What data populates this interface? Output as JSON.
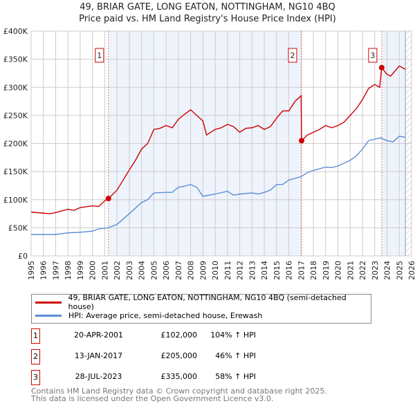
{
  "chart_data": {
    "type": "line",
    "title": "49, BRIAR GATE, LONG EATON, NOTTINGHAM, NG10 4BQ",
    "subtitle": "Price paid vs. HM Land Registry's House Price Index (HPI)",
    "xlim": [
      1995,
      2026
    ],
    "ylim": [
      0,
      400000
    ],
    "x_ticks": [
      "1995",
      "1996",
      "1997",
      "1998",
      "1999",
      "2000",
      "2001",
      "2002",
      "2003",
      "2004",
      "2005",
      "2006",
      "2007",
      "2008",
      "2009",
      "2010",
      "2011",
      "2012",
      "2013",
      "2014",
      "2015",
      "2016",
      "2017",
      "2018",
      "2019",
      "2020",
      "2021",
      "2022",
      "2023",
      "2024",
      "2025",
      "2026"
    ],
    "y_ticks": [
      {
        "v": 0,
        "l": "£0"
      },
      {
        "v": 50000,
        "l": "£50K"
      },
      {
        "v": 100000,
        "l": "£100K"
      },
      {
        "v": 150000,
        "l": "£150K"
      },
      {
        "v": 200000,
        "l": "£200K"
      },
      {
        "v": 250000,
        "l": "£250K"
      },
      {
        "v": 300000,
        "l": "£300K"
      },
      {
        "v": 350000,
        "l": "£350K"
      },
      {
        "v": 400000,
        "l": "£400K"
      }
    ],
    "grid": true,
    "series": [
      {
        "name": "49, BRIAR GATE, LONG EATON, NOTTINGHAM, NG10 4BQ (semi-detached house)",
        "color": "#cc0000",
        "x": [
          1995,
          1996,
          1996.5,
          1997,
          1998,
          1998.5,
          1999,
          2000,
          2000.5,
          2001,
          2001.3,
          2002,
          2002.5,
          2003,
          2003.5,
          2004,
          2004.5,
          2005,
          2005.5,
          2006,
          2006.5,
          2007,
          2007.5,
          2008,
          2008.5,
          2009,
          2009.3,
          2010,
          2010.5,
          2011,
          2011.5,
          2012,
          2012.5,
          2013,
          2013.5,
          2014,
          2014.5,
          2015,
          2015.5,
          2016,
          2016.5,
          2017,
          2017.04,
          2017.5,
          2018,
          2018.5,
          2019,
          2019.5,
          2020,
          2020.5,
          2021,
          2021.5,
          2022,
          2022.5,
          2023,
          2023.4,
          2023.57,
          2024,
          2024.3,
          2025,
          2025.5
        ],
        "y": [
          78000,
          76000,
          75000,
          77000,
          83000,
          81000,
          86000,
          89000,
          88000,
          98000,
          102000,
          117000,
          135000,
          153000,
          170000,
          190000,
          200000,
          225000,
          227000,
          232000,
          228000,
          243000,
          252000,
          260000,
          250000,
          240000,
          215000,
          225000,
          228000,
          234000,
          230000,
          220000,
          227000,
          228000,
          232000,
          225000,
          230000,
          245000,
          258000,
          258000,
          275000,
          285000,
          205000,
          215000,
          220000,
          225000,
          232000,
          228000,
          232000,
          238000,
          250000,
          262000,
          278000,
          298000,
          305000,
          300000,
          335000,
          323000,
          320000,
          338000,
          332000
        ]
      },
      {
        "name": "HPI: Average price, semi-detached house, Erewash",
        "color": "#5b8ed6",
        "x": [
          1995,
          1997,
          1998,
          1999,
          2000,
          2000.5,
          2001.3,
          2002,
          2003,
          2003.5,
          2004,
          2004.5,
          2005,
          2006,
          2006.5,
          2007,
          2007.5,
          2008,
          2008.5,
          2009,
          2009.5,
          2010,
          2011,
          2011.5,
          2012,
          2013,
          2013.5,
          2014,
          2014.5,
          2015,
          2015.5,
          2016,
          2016.5,
          2017,
          2017.5,
          2018,
          2019,
          2019.5,
          2020,
          2021,
          2021.5,
          2022,
          2022.5,
          2023,
          2023.5,
          2024,
          2024.5,
          2025,
          2025.5
        ],
        "y": [
          38000,
          38000,
          41000,
          42000,
          44000,
          48000,
          50000,
          56000,
          75000,
          85000,
          95000,
          100000,
          112000,
          113000,
          113000,
          122000,
          124000,
          127000,
          122000,
          106000,
          108000,
          110000,
          115000,
          108000,
          110000,
          112000,
          110000,
          113000,
          117000,
          127000,
          127000,
          135000,
          138000,
          141000,
          148000,
          152000,
          158000,
          157000,
          160000,
          170000,
          178000,
          190000,
          205000,
          208000,
          210000,
          205000,
          203000,
          213000,
          211000
        ]
      }
    ],
    "sales": [
      {
        "n": "1",
        "date": "20-APR-2001",
        "price": "£102,000",
        "hpi": "104% ↑ HPI",
        "x": 2001.3,
        "y": 102000
      },
      {
        "n": "2",
        "date": "13-JAN-2017",
        "price": "£205,000",
        "hpi": "46% ↑ HPI",
        "x": 2017.04,
        "y": 205000
      },
      {
        "n": "3",
        "date": "28-JUL-2023",
        "price": "£335,000",
        "hpi": "58% ↑ HPI",
        "x": 2023.57,
        "y": 335000
      }
    ],
    "shaded": [
      [
        2001.3,
        2017.04
      ],
      [
        2023.57,
        2025.5
      ]
    ],
    "hatch_from": 2025.5
  },
  "footer": {
    "line1": "Contains HM Land Registry data © Crown copyright and database right 2025.",
    "line2": "This data is licensed under the Open Government Licence v3.0."
  }
}
